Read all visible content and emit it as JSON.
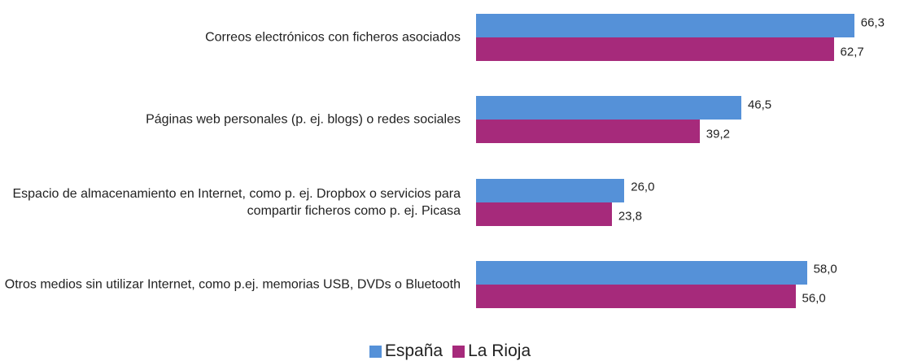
{
  "chart_data": {
    "type": "hbar",
    "categories": [
      "Correos electrónicos con ficheros asociados",
      "Páginas web personales (p. ej. blogs) o redes sociales",
      "Espacio de almacenamiento en Internet, como p. ej. Dropbox o servicios para compartir ficheros como p. ej. Picasa",
      "Otros medios sin utilizar Internet, como p.ej. memorias USB, DVDs o Bluetooth"
    ],
    "series": [
      {
        "name": "España",
        "color": "#5591d8",
        "values": [
          66.3,
          46.5,
          26.0,
          58.0
        ],
        "value_labels": [
          "66,3",
          "46,5",
          "26,0",
          "58,0"
        ]
      },
      {
        "name": "La Rioja",
        "color": "#a62a7b",
        "values": [
          62.7,
          39.2,
          23.8,
          56.0
        ],
        "value_labels": [
          "62,7",
          "39,2",
          "23,8",
          "56,0"
        ]
      }
    ],
    "legend": "bottom"
  }
}
